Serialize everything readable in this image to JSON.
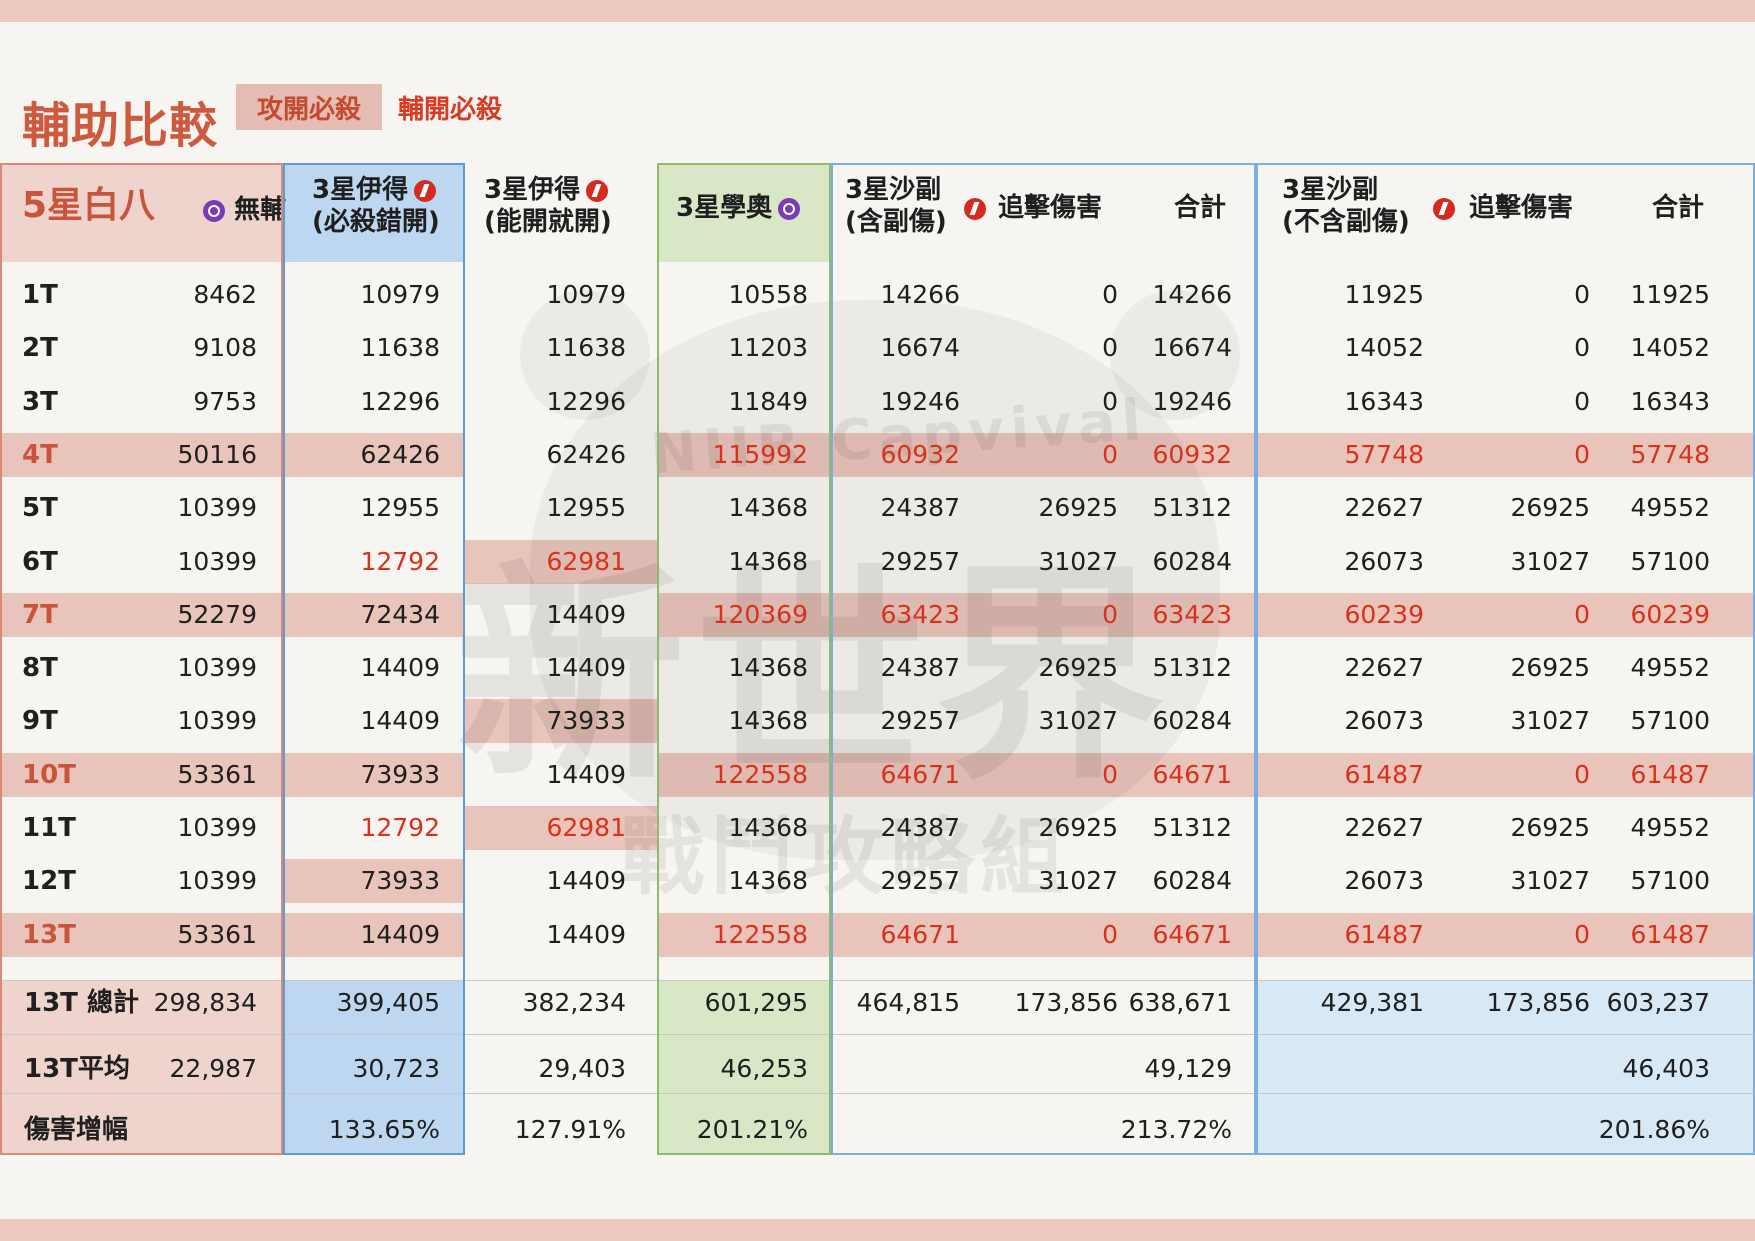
{
  "title": "輔助比較",
  "tabs": [
    "攻開必殺",
    "輔開必殺"
  ],
  "headers": {
    "base_main": "5星白八",
    "base_sub": "無輔",
    "c1_l1": "3星伊得",
    "c1_l2": "(必殺錯開)",
    "c2_l1": "3星伊得",
    "c2_l2": "(能開就開)",
    "c3": "3星學奧",
    "c4_l1": "3星沙副",
    "c4_l2": "(含副傷)",
    "c5": "追擊傷害",
    "c6": "合計",
    "c7_l1": "3星沙副",
    "c7_l2": "(不含副傷)",
    "c8": "追擊傷害",
    "c9": "合計"
  },
  "watermark": {
    "line1": "NIIR Capvival",
    "line2": "新世界",
    "line3": "戰鬥攻略組"
  },
  "rows": [
    {
      "label": "1T",
      "v": [
        "8462",
        "10979",
        "10979",
        "10558",
        "14266",
        "0",
        "14266",
        "11925",
        "0",
        "11925"
      ]
    },
    {
      "label": "2T",
      "v": [
        "9108",
        "11638",
        "11638",
        "11203",
        "16674",
        "0",
        "16674",
        "14052",
        "0",
        "14052"
      ]
    },
    {
      "label": "3T",
      "v": [
        "9753",
        "12296",
        "12296",
        "11849",
        "19246",
        "0",
        "19246",
        "16343",
        "0",
        "16343"
      ]
    },
    {
      "label": "4T",
      "v": [
        "50116",
        "62426",
        "62426",
        "115992",
        "60932",
        "0",
        "60932",
        "57748",
        "0",
        "57748"
      ]
    },
    {
      "label": "5T",
      "v": [
        "10399",
        "12955",
        "12955",
        "14368",
        "24387",
        "26925",
        "51312",
        "22627",
        "26925",
        "49552"
      ]
    },
    {
      "label": "6T",
      "v": [
        "10399",
        "12792",
        "62981",
        "14368",
        "29257",
        "31027",
        "60284",
        "26073",
        "31027",
        "57100"
      ]
    },
    {
      "label": "7T",
      "v": [
        "52279",
        "72434",
        "14409",
        "120369",
        "63423",
        "0",
        "63423",
        "60239",
        "0",
        "60239"
      ]
    },
    {
      "label": "8T",
      "v": [
        "10399",
        "14409",
        "14409",
        "14368",
        "24387",
        "26925",
        "51312",
        "22627",
        "26925",
        "49552"
      ]
    },
    {
      "label": "9T",
      "v": [
        "10399",
        "14409",
        "73933",
        "14368",
        "29257",
        "31027",
        "60284",
        "26073",
        "31027",
        "57100"
      ]
    },
    {
      "label": "10T",
      "v": [
        "53361",
        "73933",
        "14409",
        "122558",
        "64671",
        "0",
        "64671",
        "61487",
        "0",
        "61487"
      ]
    },
    {
      "label": "11T",
      "v": [
        "10399",
        "12792",
        "62981",
        "14368",
        "24387",
        "26925",
        "51312",
        "22627",
        "26925",
        "49552"
      ]
    },
    {
      "label": "12T",
      "v": [
        "10399",
        "73933",
        "14409",
        "14368",
        "29257",
        "31027",
        "60284",
        "26073",
        "31027",
        "57100"
      ]
    },
    {
      "label": "13T",
      "v": [
        "53361",
        "14409",
        "14409",
        "122558",
        "64671",
        "0",
        "64671",
        "61487",
        "0",
        "61487"
      ]
    }
  ],
  "summary": {
    "total": {
      "label": "13T 總計",
      "v": [
        "298,834",
        "399,405",
        "382,234",
        "601,295",
        "464,815",
        "173,856",
        "638,671",
        "429,381",
        "173,856",
        "603,237"
      ]
    },
    "avg": {
      "label": "13T平均",
      "v": [
        "22,987",
        "30,723",
        "29,403",
        "46,253",
        "",
        "",
        "49,129",
        "",
        "",
        "46,403"
      ]
    },
    "inc": {
      "label": "傷害增幅",
      "v": [
        "",
        "133.65%",
        "127.91%",
        "201.21%",
        "",
        "",
        "213.72%",
        "",
        "",
        "201.86%"
      ]
    }
  }
}
